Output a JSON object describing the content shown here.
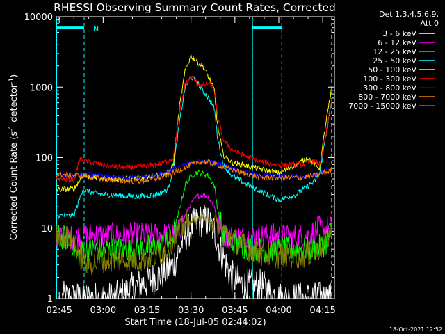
{
  "chart_data": {
    "type": "line",
    "title": "RHESSI Observing Summary Count Rates, Corrected",
    "ylabel_pre": "Corrected Count Rate (s",
    "ylabel_sup1": "-1",
    "ylabel_mid": " detector",
    "ylabel_sup2": "-1",
    "ylabel_post": ")",
    "xlabel": "Start Time (18-Jul-05 02:44:02)",
    "yscale": "log",
    "ylim": [
      1,
      10000
    ],
    "xlim_minutes": [
      0,
      95
    ],
    "x_ticks": [
      {
        "label": "02:45",
        "min": 1
      },
      {
        "label": "03:00",
        "min": 16
      },
      {
        "label": "03:15",
        "min": 31
      },
      {
        "label": "03:30",
        "min": 46
      },
      {
        "label": "03:45",
        "min": 61
      },
      {
        "label": "04:00",
        "min": 76
      },
      {
        "label": "04:15",
        "min": 91
      }
    ],
    "y_ticks": [
      {
        "label": "1",
        "value": 1
      },
      {
        "label": "10",
        "value": 10
      },
      {
        "label": "100",
        "value": 100
      },
      {
        "label": "1000",
        "value": 1000
      },
      {
        "label": "10000",
        "value": 10000
      }
    ],
    "legend_header": [
      "Det 1,3,4,5,6,9,",
      "Att 0"
    ],
    "footer_date": "18-Oct-2021 12:52",
    "night_marker": "N",
    "night_intervals": [
      [
        0,
        9.5
      ],
      [
        67,
        77
      ]
    ],
    "night_dash_minutes": [
      9.5,
      67,
      77,
      94
    ],
    "night_level": 7000,
    "series": [
      {
        "name": "3 - 6 keV",
        "color": "#ffffff",
        "points": [
          [
            2,
            1
          ],
          [
            10,
            1
          ],
          [
            14,
            1
          ],
          [
            20,
            1
          ],
          [
            28,
            1.5
          ],
          [
            34,
            2
          ],
          [
            38,
            2.5
          ],
          [
            40,
            3
          ],
          [
            42,
            5
          ],
          [
            44,
            8
          ],
          [
            46,
            10
          ],
          [
            48,
            12
          ],
          [
            50,
            13
          ],
          [
            52,
            12
          ],
          [
            54,
            9
          ],
          [
            56,
            5
          ],
          [
            58,
            3
          ],
          [
            60,
            2
          ],
          [
            64,
            1.5
          ],
          [
            70,
            1.5
          ],
          [
            76,
            1
          ],
          [
            82,
            1
          ],
          [
            88,
            1
          ],
          [
            94,
            1
          ]
        ]
      },
      {
        "name": "6 - 12 keV",
        "color": "#ff00ff",
        "points": [
          [
            0,
            7
          ],
          [
            7,
            7.5
          ],
          [
            12,
            8
          ],
          [
            20,
            8
          ],
          [
            28,
            8
          ],
          [
            34,
            8
          ],
          [
            38,
            8
          ],
          [
            42,
            9
          ],
          [
            44,
            15
          ],
          [
            46,
            22
          ],
          [
            48,
            28
          ],
          [
            50,
            30
          ],
          [
            52,
            27
          ],
          [
            54,
            20
          ],
          [
            55,
            12
          ],
          [
            57,
            8
          ],
          [
            60,
            7.5
          ],
          [
            68,
            7.5
          ],
          [
            74,
            8
          ],
          [
            80,
            7.5
          ],
          [
            86,
            8
          ],
          [
            88,
            9
          ],
          [
            90,
            10
          ],
          [
            94,
            10
          ]
        ]
      },
      {
        "name": "12 - 25 keV",
        "color": "#00ff00",
        "points": [
          [
            0,
            7.5
          ],
          [
            5,
            7
          ],
          [
            7,
            4
          ],
          [
            10,
            5
          ],
          [
            20,
            5
          ],
          [
            28,
            5
          ],
          [
            34,
            5.5
          ],
          [
            38,
            6
          ],
          [
            40,
            8
          ],
          [
            42,
            18
          ],
          [
            44,
            40
          ],
          [
            46,
            55
          ],
          [
            48,
            62
          ],
          [
            50,
            60
          ],
          [
            52,
            55
          ],
          [
            54,
            40
          ],
          [
            55,
            20
          ],
          [
            57,
            8
          ],
          [
            60,
            6
          ],
          [
            68,
            5
          ],
          [
            76,
            5
          ],
          [
            82,
            5
          ],
          [
            88,
            5
          ],
          [
            92,
            6
          ],
          [
            94,
            9
          ]
        ]
      },
      {
        "name": "25 - 50 keV",
        "color": "#00ffff",
        "points": [
          [
            0,
            15
          ],
          [
            6,
            15
          ],
          [
            9,
            35
          ],
          [
            12,
            32
          ],
          [
            16,
            30
          ],
          [
            22,
            29
          ],
          [
            28,
            28
          ],
          [
            34,
            30
          ],
          [
            38,
            35
          ],
          [
            40,
            70
          ],
          [
            42,
            300
          ],
          [
            44,
            1000
          ],
          [
            46,
            1400
          ],
          [
            48,
            1200
          ],
          [
            50,
            900
          ],
          [
            52,
            700
          ],
          [
            54,
            500
          ],
          [
            55,
            200
          ],
          [
            57,
            80
          ],
          [
            60,
            55
          ],
          [
            66,
            40
          ],
          [
            72,
            30
          ],
          [
            76,
            25
          ],
          [
            82,
            30
          ],
          [
            86,
            40
          ],
          [
            88,
            45
          ],
          [
            90,
            60
          ],
          [
            92,
            200
          ],
          [
            94,
            600
          ]
        ]
      },
      {
        "name": "50 - 100 keV",
        "color": "#ffff00",
        "points": [
          [
            0,
            35
          ],
          [
            6,
            36
          ],
          [
            9,
            55
          ],
          [
            14,
            52
          ],
          [
            20,
            50
          ],
          [
            26,
            50
          ],
          [
            32,
            55
          ],
          [
            38,
            60
          ],
          [
            40,
            80
          ],
          [
            42,
            500
          ],
          [
            44,
            1700
          ],
          [
            46,
            2800
          ],
          [
            48,
            2300
          ],
          [
            50,
            2000
          ],
          [
            52,
            1400
          ],
          [
            54,
            900
          ],
          [
            55,
            300
          ],
          [
            57,
            110
          ],
          [
            60,
            85
          ],
          [
            66,
            75
          ],
          [
            72,
            65
          ],
          [
            76,
            60
          ],
          [
            82,
            80
          ],
          [
            86,
            100
          ],
          [
            88,
            80
          ],
          [
            90,
            70
          ],
          [
            92,
            300
          ],
          [
            94,
            900
          ]
        ]
      },
      {
        "name": "100 - 300 keV",
        "color": "#ff0000",
        "points": [
          [
            0,
            50
          ],
          [
            6,
            48
          ],
          [
            8,
            95
          ],
          [
            12,
            85
          ],
          [
            18,
            75
          ],
          [
            24,
            72
          ],
          [
            30,
            75
          ],
          [
            36,
            82
          ],
          [
            40,
            100
          ],
          [
            42,
            400
          ],
          [
            44,
            1100
          ],
          [
            46,
            1400
          ],
          [
            48,
            1150
          ],
          [
            50,
            1050
          ],
          [
            52,
            1150
          ],
          [
            54,
            900
          ],
          [
            55,
            400
          ],
          [
            57,
            180
          ],
          [
            60,
            130
          ],
          [
            66,
            100
          ],
          [
            72,
            82
          ],
          [
            78,
            78
          ],
          [
            84,
            80
          ],
          [
            88,
            88
          ],
          [
            90,
            80
          ],
          [
            92,
            200
          ],
          [
            94,
            650
          ]
        ]
      },
      {
        "name": "300 - 800 keV",
        "color": "#0000ff",
        "points": [
          [
            0,
            55
          ],
          [
            6,
            55
          ],
          [
            10,
            60
          ],
          [
            16,
            56
          ],
          [
            22,
            53
          ],
          [
            28,
            52
          ],
          [
            34,
            56
          ],
          [
            40,
            68
          ],
          [
            46,
            85
          ],
          [
            50,
            90
          ],
          [
            54,
            85
          ],
          [
            58,
            75
          ],
          [
            64,
            62
          ],
          [
            70,
            56
          ],
          [
            76,
            55
          ],
          [
            82,
            55
          ],
          [
            88,
            58
          ],
          [
            92,
            65
          ],
          [
            94,
            70
          ]
        ]
      },
      {
        "name": "800 - 7000 keV",
        "color": "#ff8000",
        "points": [
          [
            0,
            58
          ],
          [
            6,
            56
          ],
          [
            10,
            55
          ],
          [
            16,
            50
          ],
          [
            22,
            47
          ],
          [
            28,
            46
          ],
          [
            34,
            50
          ],
          [
            40,
            60
          ],
          [
            46,
            80
          ],
          [
            50,
            88
          ],
          [
            54,
            82
          ],
          [
            58,
            72
          ],
          [
            64,
            60
          ],
          [
            70,
            52
          ],
          [
            76,
            52
          ],
          [
            82,
            52
          ],
          [
            88,
            55
          ],
          [
            92,
            62
          ],
          [
            94,
            65
          ]
        ]
      },
      {
        "name": "7000 - 15000 keV",
        "color": "#808000",
        "points": [
          [
            0,
            8
          ],
          [
            6,
            7
          ],
          [
            8,
            4
          ],
          [
            10,
            3
          ],
          [
            16,
            3.5
          ],
          [
            22,
            3.5
          ],
          [
            28,
            3.5
          ],
          [
            34,
            4
          ],
          [
            38,
            5
          ],
          [
            40,
            7
          ],
          [
            44,
            11
          ],
          [
            48,
            14
          ],
          [
            52,
            13
          ],
          [
            56,
            10
          ],
          [
            60,
            7
          ],
          [
            66,
            5
          ],
          [
            72,
            4
          ],
          [
            78,
            4
          ],
          [
            84,
            4
          ],
          [
            88,
            4.5
          ],
          [
            92,
            6
          ],
          [
            94,
            10
          ]
        ]
      }
    ]
  }
}
